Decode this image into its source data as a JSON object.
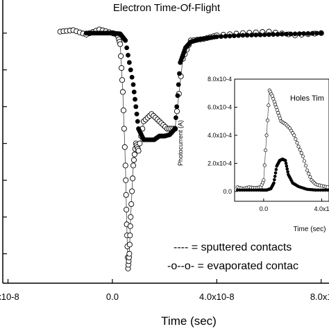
{
  "chart_data": [
    {
      "type": "scatter",
      "title": "Electron Time-Of-Flight",
      "xlabel": "Time (sec)",
      "ylabel": "",
      "xlim": [
        -4.2e-08,
        8.3e-08
      ],
      "ylim": [
        -0.00024,
        0.000145
      ],
      "xticks": [
        {
          "value": -4e-08,
          "label": "x10-8"
        },
        {
          "value": 0.0,
          "label": "0.0"
        },
        {
          "value": 4e-08,
          "label": "4.0x10-8"
        },
        {
          "value": 8e-08,
          "label": "8.0x1"
        }
      ],
      "yticks": [
        0.0001,
        5e-05,
        0.0,
        -5e-05,
        -0.0001,
        -0.00015,
        -0.0002
      ],
      "legend": [
        "---- = sputtered contacts",
        "-o--o- = evaporated contac"
      ],
      "series": [
        {
          "style": "solid-filled-markers",
          "x": [
            -1e-08,
            -5e-09,
            0.0,
            3e-09,
            5e-09,
            8e-09,
            1e-08,
            1.2e-08,
            1.6e-08,
            1.8e-08,
            2e-08,
            2.2e-08,
            2.4e-08,
            2.6e-08,
            2.8e-08,
            3e-08,
            3.4e-08,
            4e-08,
            5e-08,
            6e-08,
            7e-08,
            8e-08
          ],
          "y": [
            0.0001,
            0.0001,
            0.0001,
            9.9e-05,
            9e-05,
            3e-05,
            -3e-05,
            -4.5e-05,
            -4.5e-05,
            -4e-05,
            -4e-05,
            -3.8e-05,
            -3e-05,
            6e-05,
            8e-05,
            8.8e-05,
            9.2e-05,
            9.5e-05,
            9.7e-05,
            9.8e-05,
            9.9e-05,
            0.0001
          ]
        },
        {
          "style": "open-circles-line",
          "x": [
            -2e-08,
            -1.5e-08,
            -1e-08,
            -5e-09,
            0.0,
            2e-09,
            3e-09,
            4e-09,
            5e-09,
            5.5e-09,
            6e-09,
            6.5e-09,
            7e-09,
            8e-09,
            9e-09,
            1e-08,
            1.2e-08,
            1.5e-08,
            1.8e-08,
            2.1e-08,
            2.4e-08,
            2.7e-08,
            3e-08,
            3.5e-08,
            4e-08,
            5e-08,
            6e-08,
            7e-08,
            8e-08
          ],
          "y": [
            0.000102,
            0.000104,
            9.8e-05,
            0.000105,
            0.0001,
            9.8e-05,
            8.5e-05,
            2e-05,
            -8e-05,
            -0.00016,
            -0.00022,
            -0.0002,
            -0.00015,
            -8e-05,
            -5e-05,
            -6e-05,
            -2e-05,
            -1e-05,
            -2e-05,
            -3e-05,
            -3e-05,
            6.5e-05,
            9e-05,
            9.2e-05,
            9.7e-05,
            0.0001,
            0.000102,
            9.7e-05,
            0.0001
          ]
        }
      ]
    },
    {
      "type": "scatter",
      "title": "Holes Tim",
      "xlabel": "Time (sec)",
      "ylabel": "Photocurrent (A)",
      "xlim": [
        -2e-08,
        4.5e-08
      ],
      "ylim": [
        -7e-05,
        0.0008
      ],
      "yticks": [
        {
          "value": 0.0008,
          "label": "8.0x10-4"
        },
        {
          "value": 0.0006,
          "label": "6.0x10-4"
        },
        {
          "value": 0.0004,
          "label": "4.0x10-4"
        },
        {
          "value": 0.0002,
          "label": "2.0x10-4"
        },
        {
          "value": 0.0,
          "label": "0.0"
        }
      ],
      "xticks": [
        {
          "value": 0.0,
          "label": "0.0"
        },
        {
          "value": 4e-08,
          "label": "4.0x1"
        }
      ],
      "series": [
        {
          "style": "open-circles-line",
          "x": [
            -1.8e-08,
            -1.4e-08,
            -1e-08,
            -6e-09,
            -2e-09,
            0.0,
            2e-09,
            4e-09,
            6e-09,
            8e-09,
            1e-08,
            1.2e-08,
            1.5e-08,
            1.8e-08,
            2.1e-08,
            2.4e-08,
            2.7e-08,
            3e-08,
            3.3e-08,
            3.6e-08,
            4e-08,
            4.4e-08
          ],
          "y": [
            3e-05,
            2e-05,
            3e-05,
            2.5e-05,
            3e-05,
            8e-05,
            0.0004,
            0.00072,
            0.00068,
            0.00062,
            0.00056,
            0.0005,
            0.00048,
            0.00045,
            0.0004,
            0.00032,
            0.00025,
            0.00015,
            8e-05,
            5e-05,
            4e-05,
            3e-05
          ]
        },
        {
          "style": "solid-filled-markers",
          "x": [
            -1.8e-08,
            -1e-08,
            -2e-09,
            2e-09,
            5e-09,
            7e-09,
            9e-09,
            1.1e-08,
            1.3e-08,
            1.5e-08,
            1.7e-08,
            2e-08,
            2.4e-08,
            3e-08,
            3.6e-08,
            4.4e-08
          ],
          "y": [
            1e-05,
            1e-05,
            1e-05,
            1e-05,
            2e-05,
            6e-05,
            0.00018,
            0.00022,
            0.00023,
            0.00022,
            0.00012,
            6e-05,
            3.5e-05,
            1.5e-05,
            1e-05,
            1e-05
          ]
        }
      ]
    }
  ]
}
